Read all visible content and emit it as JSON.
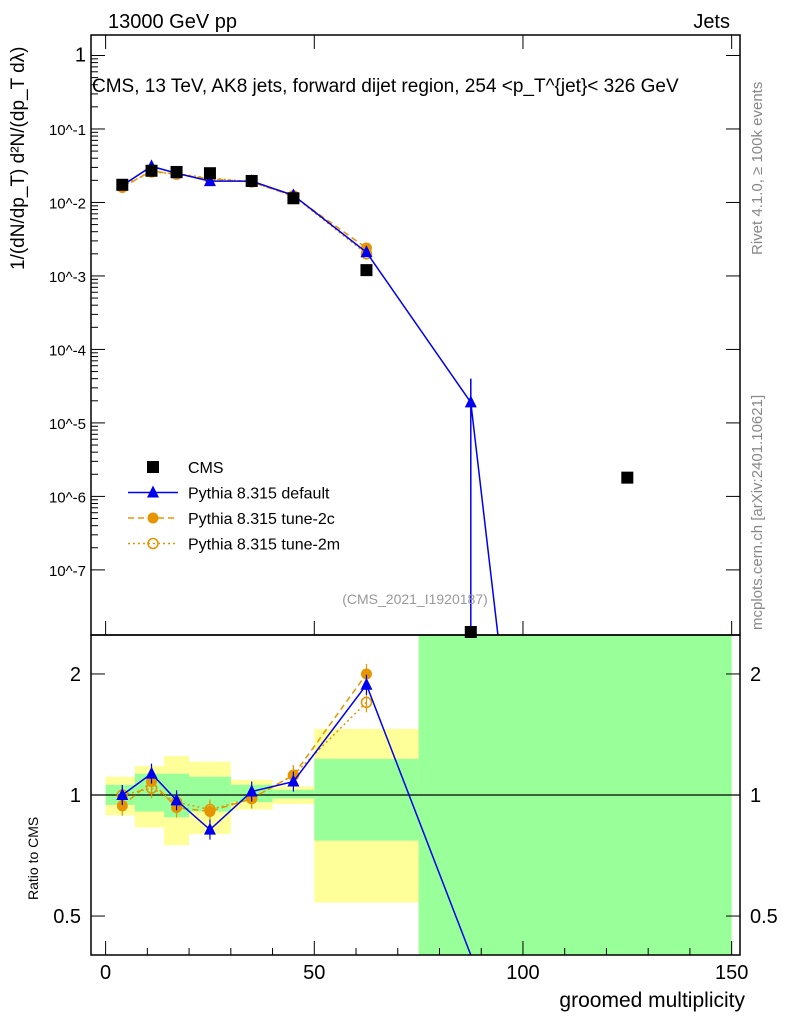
{
  "header": {
    "left": "13000 GeV pp",
    "right": "Jets"
  },
  "side": {
    "rivet": "Rivet 4.1.0, ≥ 100k events",
    "mcplots": "mcplots.cern.ch [arXiv:2401.10621]"
  },
  "watermark": "(CMS_2021_I1920187)",
  "chart_data": [
    {
      "type": "line",
      "title": "CMS, 13 TeV, AK8 jets, forward dijet region, 254 <p_T^{jet}< 326 GeV",
      "ylabel": "1/(dN/dp_T) d²N/(dp_T dλ)",
      "yscale": "log",
      "ylim": [
        1.3e-08,
        1.9
      ],
      "xlim": [
        -3.5,
        152
      ],
      "ytick_labels": [
        "1",
        "10^-1",
        "10^-2",
        "10^-3",
        "10^-4",
        "10^-5",
        "10^-6",
        "10^-7"
      ],
      "ytick_values": [
        1,
        0.1,
        0.01,
        0.001,
        0.0001,
        1e-05,
        1e-06,
        1e-07
      ],
      "bin_edges": [
        0,
        7,
        14,
        20,
        30,
        40,
        50,
        75,
        100,
        150
      ],
      "x": [
        4,
        11,
        17,
        25,
        35,
        45,
        62.5,
        87.5,
        125
      ],
      "legend_position": "bottom-left",
      "series": [
        {
          "name": "CMS",
          "color": "#000000",
          "marker": "square",
          "values": [
            0.0174,
            0.027,
            0.026,
            0.025,
            0.0196,
            0.0114,
            0.0012,
            1.3e-08,
            1.8e-06
          ]
        },
        {
          "name": "Pythia 8.315 default",
          "color": "#0000ee",
          "marker": "triangle",
          "style": "solid",
          "values": [
            0.017,
            0.031,
            0.025,
            0.0195,
            0.0195,
            0.0125,
            0.0021,
            1.9e-05,
            null
          ],
          "err_up": [
            null,
            null,
            null,
            null,
            null,
            null,
            null,
            4e-05,
            null
          ]
        },
        {
          "name": "Pythia 8.315 tune-2c",
          "color": "#e69500",
          "marker": "circle",
          "style": "dashed",
          "values": [
            0.016,
            0.027,
            0.024,
            0.021,
            0.019,
            0.0122,
            0.0024,
            null,
            null
          ]
        },
        {
          "name": "Pythia 8.315 tune-2m",
          "color": "#e69500",
          "marker": "open-circle",
          "style": "dotted",
          "values": [
            0.0168,
            0.026,
            0.0245,
            0.0215,
            0.019,
            0.0123,
            0.002,
            null,
            null
          ]
        }
      ]
    },
    {
      "type": "line",
      "ylabel": "Ratio to CMS",
      "xlabel": "groomed multiplicity",
      "yscale": "log",
      "ylim": [
        0.4,
        2.5
      ],
      "xlim": [
        -3.5,
        152
      ],
      "ytick_labels": [
        "0.5",
        "1",
        "2"
      ],
      "ytick_values": [
        0.5,
        1,
        2
      ],
      "xtick_labels": [
        "0",
        "50",
        "100",
        "150"
      ],
      "xtick_values": [
        0,
        50,
        100,
        150
      ],
      "bands": {
        "edges": [
          0,
          7,
          14,
          20,
          30,
          40,
          50,
          75,
          150
        ],
        "yellow": [
          [
            0.89,
            1.11
          ],
          [
            0.83,
            1.18
          ],
          [
            0.75,
            1.25
          ],
          [
            0.8,
            1.21
          ],
          [
            0.92,
            1.09
          ],
          [
            0.95,
            1.05
          ],
          [
            0.54,
            1.46
          ],
          [
            0.4,
            2.5
          ]
        ],
        "green": [
          [
            0.945,
            1.06
          ],
          [
            0.91,
            1.13
          ],
          [
            0.88,
            1.13
          ],
          [
            0.91,
            1.11
          ],
          [
            0.96,
            1.06
          ],
          [
            0.98,
            1.03
          ],
          [
            0.77,
            1.23
          ],
          [
            0.4,
            2.5
          ]
        ]
      },
      "x": [
        4,
        11,
        17,
        25,
        35,
        45,
        62.5,
        87.5
      ],
      "series": [
        {
          "name": "Pythia 8.315 default",
          "values": [
            1.0,
            1.13,
            0.97,
            0.82,
            1.02,
            1.08,
            1.88,
            0.3
          ]
        },
        {
          "name": "Pythia 8.315 tune-2c",
          "values": [
            0.94,
            1.08,
            0.93,
            0.91,
            0.98,
            1.12,
            2.0,
            null
          ]
        },
        {
          "name": "Pythia 8.315 tune-2m",
          "values": [
            1.0,
            1.04,
            0.96,
            0.92,
            0.98,
            1.12,
            1.7,
            null
          ]
        }
      ]
    }
  ]
}
